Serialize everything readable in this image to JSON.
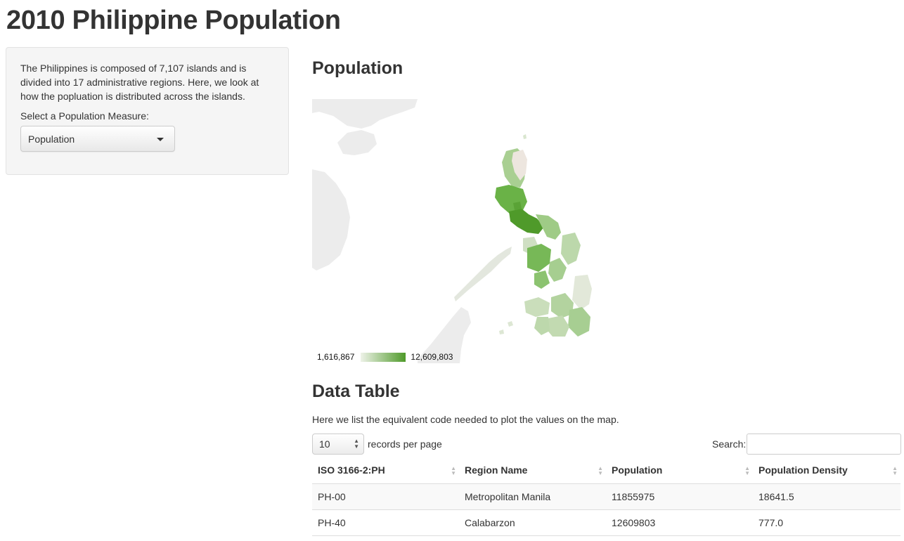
{
  "page": {
    "title": "2010 Philippine Population"
  },
  "sidebar": {
    "intro": "The Philippines is composed of 7,107 islands and is divided into 17 administrative regions. Here, we look at how the popluation is distributed across the islands.",
    "measure_label": "Select a Population Measure:",
    "measure_selected": "Population"
  },
  "map_section": {
    "title": "Population",
    "legend_min": "1,616,867",
    "legend_max": "12,609,803",
    "colors": {
      "low": "#eef2e8",
      "high": "#4f9a2a",
      "land": "#f2f2f2"
    }
  },
  "table_section": {
    "title": "Data Table",
    "description": "Here we list the equivalent code needed to plot the values on the map.",
    "page_length": "10",
    "records_label": "records per page",
    "search_label": "Search:",
    "columns": [
      "ISO 3166-2:PH",
      "Region Name",
      "Population",
      "Population Density"
    ],
    "rows": [
      [
        "PH-00",
        "Metropolitan Manila",
        "11855975",
        "18641.5"
      ],
      [
        "PH-40",
        "Calabarzon",
        "12609803",
        "777.0"
      ]
    ]
  }
}
